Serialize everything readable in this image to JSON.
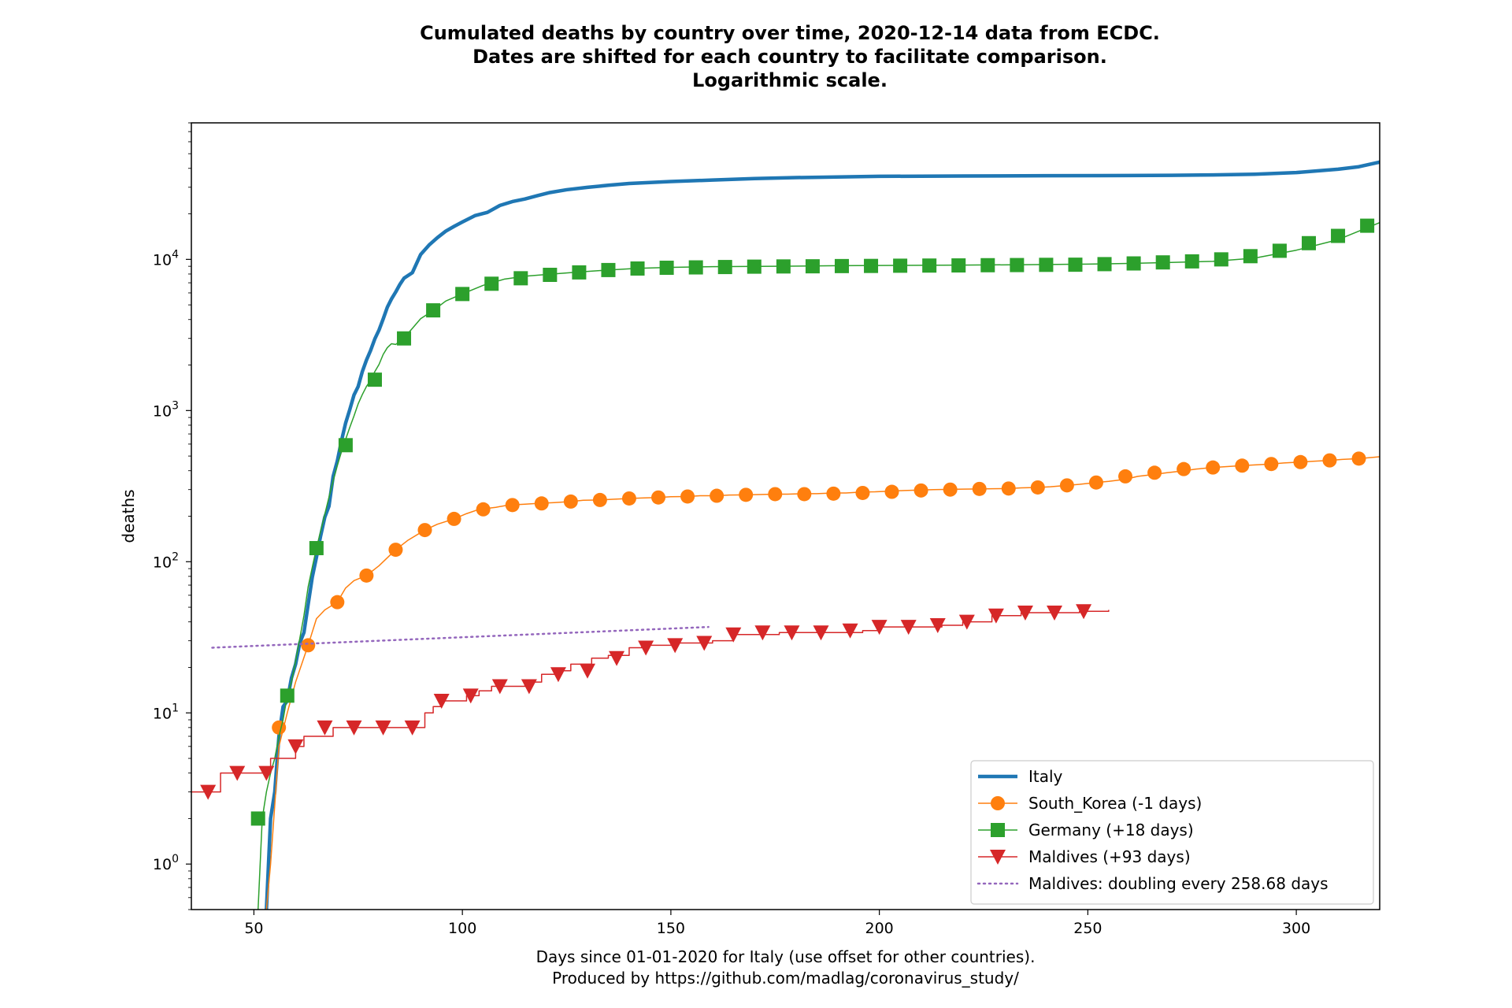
{
  "chart_data": {
    "type": "line",
    "title_lines": [
      "Cumulated deaths by country over time, 2020-12-14 data from ECDC.",
      "Dates are shifted for each country to facilitate comparison.",
      "Logarithmic scale."
    ],
    "xlabel_lines": [
      "Days since 01-01-2020 for Italy (use offset for other countries).",
      "Produced by https://github.com/madlag/coronavirus_study/"
    ],
    "ylabel": "deaths",
    "xlim": [
      35,
      320
    ],
    "ylim": [
      0.5,
      80000
    ],
    "yscale": "log",
    "x_ticks": [
      50,
      100,
      150,
      200,
      250,
      300
    ],
    "y_ticks": [
      {
        "value": 1,
        "base": "10",
        "exp": "0"
      },
      {
        "value": 10,
        "base": "10",
        "exp": "1"
      },
      {
        "value": 100,
        "base": "10",
        "exp": "2"
      },
      {
        "value": 1000,
        "base": "10",
        "exp": "3"
      },
      {
        "value": 10000,
        "base": "10",
        "exp": "4"
      }
    ],
    "grid": false,
    "legend_position": "lower right",
    "series": [
      {
        "name": "Italy",
        "color": "#1f77b4",
        "marker": "none",
        "linewidth": 4.5,
        "x": [
          53,
          54,
          55,
          56,
          57,
          58,
          59,
          60,
          61,
          62,
          63,
          64,
          65,
          66,
          67,
          68,
          69,
          70,
          71,
          72,
          73,
          74,
          75,
          76,
          77,
          78,
          79,
          80,
          81,
          82,
          83,
          84,
          85,
          86,
          88,
          90,
          92,
          94,
          96,
          98,
          100,
          103,
          106,
          109,
          112,
          115,
          118,
          121,
          125,
          130,
          135,
          140,
          150,
          160,
          170,
          180,
          200,
          220,
          240,
          260,
          270,
          280,
          290,
          300,
          310,
          315,
          320
        ],
        "y": [
          0.5,
          2,
          3,
          7,
          11,
          12,
          17,
          21,
          29,
          34,
          52,
          79,
          107,
          148,
          197,
          233,
          366,
          463,
          631,
          827,
          1016,
          1266,
          1441,
          1809,
          2158,
          2503,
          2978,
          3405,
          4032,
          4825,
          5476,
          6077,
          6820,
          7503,
          8165,
          10779,
          12428,
          13915,
          15362,
          16523,
          17669,
          19468,
          20465,
          22745,
          24114,
          25085,
          26384,
          27682,
          28884,
          29958,
          30911,
          31763,
          32735,
          33475,
          34223,
          34744,
          35427,
          35587,
          35738,
          35875,
          36000,
          36200,
          36600,
          37500,
          39500,
          41000,
          44000
        ]
      },
      {
        "name": "South_Korea (-1 days)",
        "color": "#ff7f0e",
        "marker": "circle",
        "linewidth": 1.5,
        "x": [
          53,
          54,
          56,
          58,
          60,
          63,
          65,
          67,
          70,
          72,
          74,
          77,
          80,
          84,
          87,
          91,
          94,
          98,
          101,
          104,
          108,
          111,
          115,
          118,
          122,
          126,
          129,
          133,
          136,
          140,
          143,
          147,
          150,
          154,
          157,
          161,
          164,
          168,
          171,
          175,
          178,
          182,
          185,
          189,
          192,
          196,
          199,
          203,
          206,
          210,
          213,
          217,
          220,
          224,
          227,
          231,
          234,
          238,
          241,
          245,
          248,
          252,
          255,
          259,
          262,
          266,
          269,
          273,
          276,
          280,
          283,
          287,
          290,
          294,
          297,
          301,
          304,
          308,
          311,
          315,
          320
        ],
        "y": [
          0.5,
          1,
          6,
          10,
          16,
          28,
          42,
          48,
          54,
          67,
          75,
          81,
          94,
          120,
          139,
          162,
          177,
          192,
          208,
          222,
          229,
          237,
          240,
          243,
          246,
          250,
          255,
          256,
          259,
          262,
          264,
          266,
          269,
          270,
          273,
          273,
          276,
          277,
          278,
          280,
          280,
          282,
          282,
          285,
          285,
          289,
          290,
          293,
          296,
          298,
          300,
          301,
          302,
          303,
          304,
          305,
          308,
          310,
          313,
          320,
          325,
          334,
          340,
          351,
          367,
          378,
          388,
          399,
          410,
          420,
          425,
          432,
          437,
          443,
          450,
          456,
          462,
          468,
          475,
          481,
          495
        ],
        "marker_x": [
          56,
          63,
          70,
          77,
          84,
          91,
          98,
          105,
          112,
          119,
          126,
          133,
          140,
          147,
          154,
          161,
          168,
          175,
          182,
          189,
          196,
          203,
          210,
          217,
          224,
          231,
          238,
          245,
          252,
          259,
          266,
          273,
          280,
          287,
          294,
          301,
          308,
          315
        ],
        "marker_y": [
          8,
          28,
          54,
          81,
          120,
          162,
          192,
          222,
          237,
          243,
          250,
          256,
          262,
          266,
          270,
          273,
          277,
          280,
          280,
          282,
          285,
          290,
          296,
          300,
          303,
          305,
          310,
          320,
          334,
          367,
          388,
          410,
          420,
          432,
          443,
          456,
          468,
          481
        ]
      },
      {
        "name": "Germany (+18 days)",
        "color": "#2ca02c",
        "marker": "square",
        "linewidth": 1.5,
        "x": [
          51,
          52,
          53,
          54,
          55,
          56,
          57,
          58,
          59,
          60,
          61,
          62,
          63,
          64,
          65,
          66,
          67,
          68,
          69,
          70,
          71,
          72,
          73,
          74,
          75,
          76,
          77,
          78,
          79,
          80,
          81,
          82,
          83,
          84,
          86,
          88,
          90,
          93,
          96,
          100,
          105,
          110,
          115,
          120,
          128,
          135,
          142,
          150,
          160,
          175,
          190,
          205,
          220,
          235,
          250,
          260,
          270,
          280,
          290,
          300,
          310,
          320
        ],
        "y": [
          0.5,
          2,
          3,
          4,
          5,
          7,
          9,
          13,
          16,
          22,
          31,
          44,
          68,
          92,
          123,
          159,
          206,
          267,
          342,
          433,
          533,
          645,
          775,
          920,
          1107,
          1275,
          1444,
          1584,
          1810,
          2016,
          2349,
          2607,
          2767,
          2736,
          3022,
          3495,
          4052,
          4586,
          5300,
          5913,
          6736,
          7392,
          7738,
          7935,
          8247,
          8500,
          8720,
          8860,
          8950,
          9000,
          9080,
          9120,
          9170,
          9220,
          9300,
          9400,
          9550,
          9700,
          10200,
          11500,
          13500,
          17500
        ],
        "marker_x": [
          51,
          58,
          65,
          72,
          79,
          86,
          93,
          100,
          107,
          114,
          121,
          128,
          135,
          142,
          149,
          156,
          163,
          170,
          177,
          184,
          191,
          198,
          205,
          212,
          219,
          226,
          233,
          240,
          247,
          254,
          261,
          268,
          275,
          282,
          289,
          296,
          303,
          310,
          317
        ],
        "marker_y": [
          2,
          13,
          123,
          590,
          1600,
          3000,
          4600,
          5900,
          6900,
          7500,
          7900,
          8200,
          8500,
          8700,
          8800,
          8850,
          8900,
          8950,
          8980,
          9000,
          9030,
          9050,
          9080,
          9100,
          9120,
          9150,
          9170,
          9200,
          9220,
          9300,
          9400,
          9550,
          9700,
          10000,
          10500,
          11400,
          12800,
          14300,
          16700
        ]
      },
      {
        "name": "Maldives (+93 days)",
        "color": "#d62728",
        "marker": "triangle_down",
        "linewidth": 1.5,
        "step": true,
        "x": [
          35,
          42,
          48,
          54,
          57,
          60,
          62,
          65,
          69,
          74,
          79,
          84,
          88,
          91,
          93,
          95,
          98,
          101,
          104,
          107,
          111,
          115,
          119,
          123,
          126,
          131,
          135,
          140,
          143,
          147,
          151,
          156,
          160,
          165,
          170,
          176,
          183,
          190,
          196,
          200,
          207,
          215,
          220,
          227,
          234,
          241,
          248,
          255
        ],
        "y": [
          3,
          4,
          4,
          5,
          5,
          6,
          7,
          7,
          8,
          8,
          8,
          8,
          8,
          10,
          11,
          12,
          12,
          13,
          14,
          15,
          15,
          16,
          18,
          19,
          21,
          23,
          24,
          27,
          28,
          28,
          29,
          29,
          30,
          33,
          33,
          34,
          34,
          34,
          35,
          37,
          37,
          38,
          40,
          44,
          46,
          46,
          47,
          48
        ],
        "marker_x": [
          39,
          46,
          53,
          60,
          67,
          74,
          81,
          88,
          95,
          102,
          109,
          116,
          123,
          130,
          137,
          144,
          151,
          158,
          165,
          172,
          179,
          186,
          193,
          200,
          207,
          214,
          221,
          228,
          235,
          242,
          249
        ],
        "marker_y": [
          3,
          4,
          4,
          6,
          8,
          8,
          8,
          8,
          12,
          13,
          15,
          15,
          18,
          19,
          23,
          27,
          28,
          29,
          33,
          34,
          34,
          34,
          35,
          37,
          37,
          38,
          40,
          44,
          46,
          46,
          47
        ]
      },
      {
        "name": "Maldives: doubling every 258.68 days",
        "color": "#9467bd",
        "marker": "none",
        "linewidth": 2.5,
        "dotted": true,
        "x": [
          40,
          159
        ],
        "y": [
          27,
          37
        ]
      }
    ]
  }
}
